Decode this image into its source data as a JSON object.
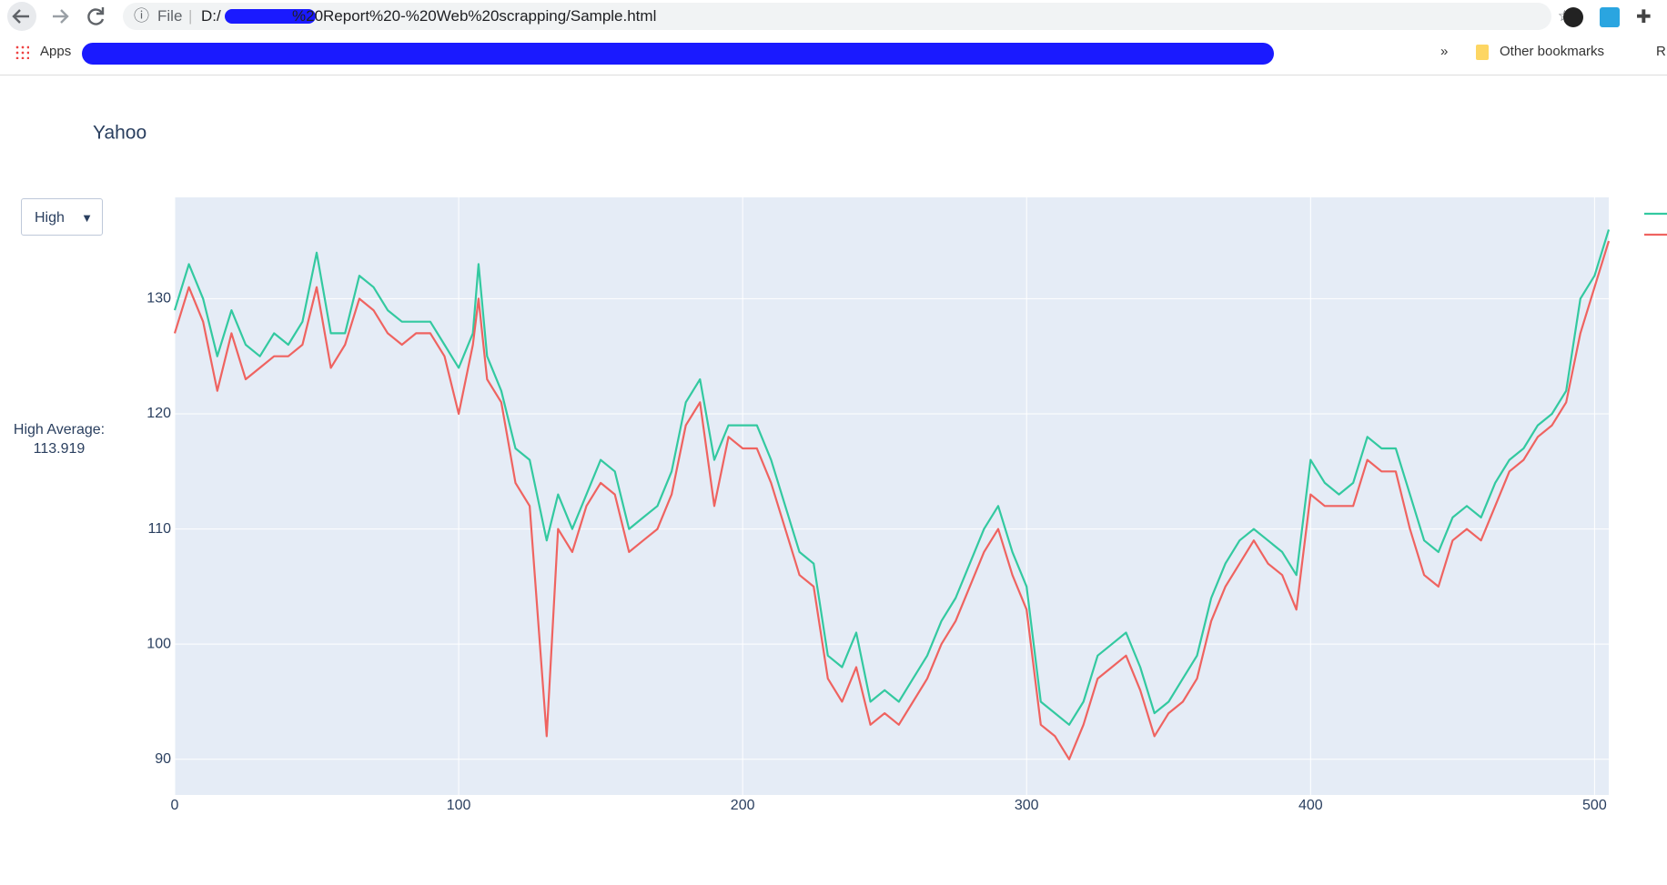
{
  "browser": {
    "scheme": "File",
    "drive": "D:/",
    "path": "%20Report%20-%20Web%20scrapping/Sample.html",
    "bookmarks": [
      "Apps"
    ],
    "overflow": "»",
    "other_bookmarks": "Other bookmarks",
    "reading": "R"
  },
  "dropdown": {
    "selected": "High"
  },
  "annotation": {
    "label": "High Average:",
    "value": 113.919
  },
  "chart_data": {
    "type": "line",
    "title": "Yahoo",
    "x": [
      0,
      5,
      10,
      15,
      20,
      25,
      30,
      35,
      40,
      45,
      50,
      55,
      60,
      65,
      70,
      75,
      80,
      85,
      90,
      95,
      100,
      105,
      107,
      110,
      115,
      120,
      125,
      131,
      135,
      140,
      145,
      150,
      155,
      160,
      165,
      170,
      175,
      180,
      185,
      190,
      195,
      200,
      205,
      210,
      215,
      220,
      225,
      230,
      235,
      240,
      245,
      250,
      255,
      260,
      265,
      270,
      275,
      280,
      285,
      290,
      295,
      300,
      305,
      310,
      315,
      320,
      325,
      330,
      335,
      340,
      345,
      350,
      355,
      360,
      365,
      370,
      375,
      380,
      385,
      390,
      395,
      400,
      405,
      410,
      415,
      420,
      425,
      430,
      435,
      440,
      445,
      450,
      455,
      460,
      465,
      470,
      475,
      480,
      485,
      490,
      495,
      500,
      505
    ],
    "series": [
      {
        "color": "#33c9a0",
        "values": [
          129,
          133,
          130,
          125,
          129,
          126,
          125,
          127,
          126,
          128,
          134,
          127,
          127,
          132,
          131,
          129,
          128,
          128,
          128,
          126,
          124,
          127,
          133,
          125,
          122,
          117,
          116,
          109,
          113,
          110,
          113,
          116,
          115,
          110,
          111,
          112,
          115,
          121,
          123,
          116,
          119,
          119,
          119,
          116,
          112,
          108,
          107,
          99,
          98,
          101,
          95,
          96,
          95,
          97,
          99,
          102,
          104,
          107,
          110,
          112,
          108,
          105,
          95,
          94,
          93,
          95,
          99,
          100,
          101,
          98,
          94,
          95,
          97,
          99,
          104,
          107,
          109,
          110,
          109,
          108,
          106,
          116,
          114,
          113,
          114,
          118,
          117,
          117,
          113,
          109,
          108,
          111,
          112,
          111,
          114,
          116,
          117,
          119,
          120,
          122,
          130,
          132,
          136
        ]
      },
      {
        "color": "#ef6360",
        "values": [
          127,
          131,
          128,
          122,
          127,
          123,
          124,
          125,
          125,
          126,
          131,
          124,
          126,
          130,
          129,
          127,
          126,
          127,
          127,
          125,
          120,
          126,
          130,
          123,
          121,
          114,
          112,
          92,
          110,
          108,
          112,
          114,
          113,
          108,
          109,
          110,
          113,
          119,
          121,
          112,
          118,
          117,
          117,
          114,
          110,
          106,
          105,
          97,
          95,
          98,
          93,
          94,
          93,
          95,
          97,
          100,
          102,
          105,
          108,
          110,
          106,
          103,
          93,
          92,
          90,
          93,
          97,
          98,
          99,
          96,
          92,
          94,
          95,
          97,
          102,
          105,
          107,
          109,
          107,
          106,
          103,
          113,
          112,
          112,
          112,
          116,
          115,
          115,
          110,
          106,
          105,
          109,
          110,
          109,
          112,
          115,
          116,
          118,
          119,
          121,
          127,
          131,
          135
        ]
      }
    ],
    "xlim": [
      0,
      505
    ],
    "ylim": [
      86.9,
      138.8
    ],
    "xticks": [
      0,
      100,
      200,
      300,
      400,
      500
    ],
    "yticks": [
      90,
      100,
      110,
      120,
      130
    ],
    "grid": true
  }
}
